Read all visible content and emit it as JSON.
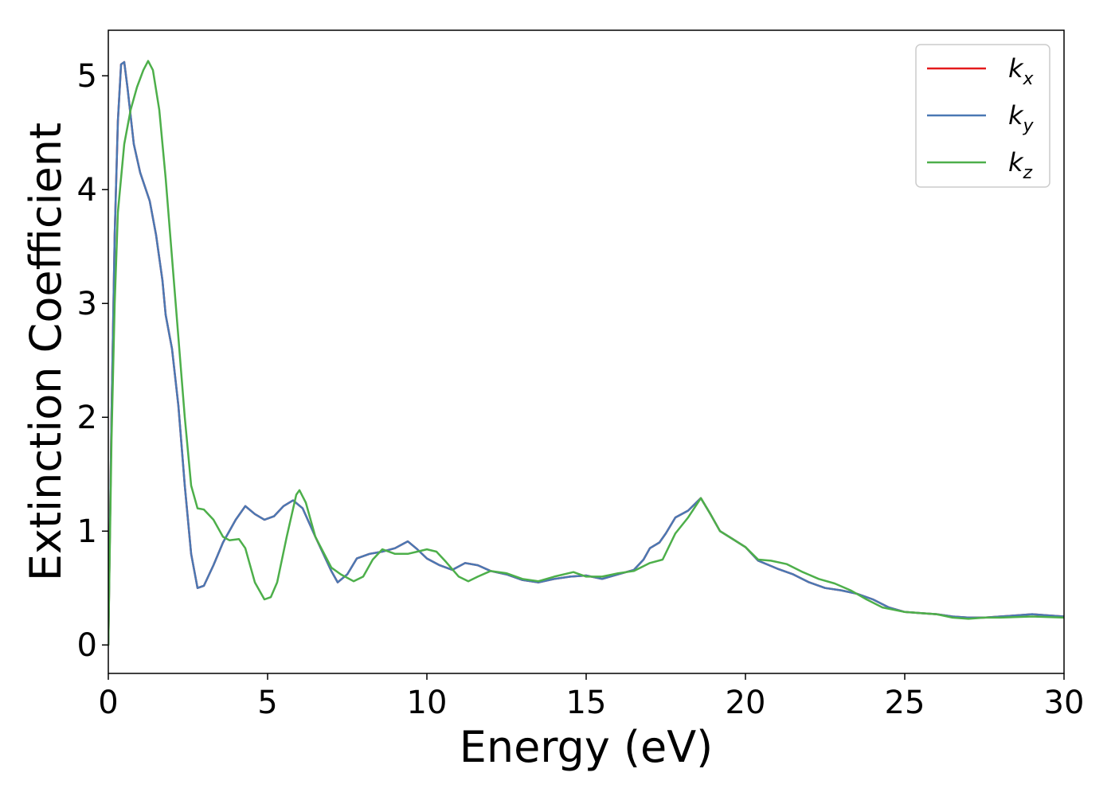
{
  "chart_data": {
    "type": "line",
    "title": "",
    "xlabel": "Energy (eV)",
    "ylabel": "Extinction Coefficient",
    "xlim": [
      0,
      30
    ],
    "ylim": [
      -0.25,
      5.4
    ],
    "xticks": [
      0,
      5,
      10,
      15,
      20,
      25,
      30
    ],
    "yticks": [
      0,
      1,
      2,
      3,
      4,
      5
    ],
    "grid": false,
    "legend_position": "top-right",
    "series": [
      {
        "name": "k",
        "subscript": "x",
        "color": "#e41a1c",
        "points": [
          [
            0,
            0
          ],
          [
            0.1,
            2.0
          ],
          [
            0.2,
            3.6
          ],
          [
            0.3,
            4.6
          ],
          [
            0.4,
            5.1
          ],
          [
            0.5,
            5.12
          ],
          [
            0.6,
            4.9
          ],
          [
            0.8,
            4.4
          ],
          [
            1.0,
            4.15
          ],
          [
            1.3,
            3.9
          ],
          [
            1.5,
            3.6
          ],
          [
            1.7,
            3.2
          ],
          [
            1.8,
            2.9
          ],
          [
            2.0,
            2.6
          ],
          [
            2.2,
            2.1
          ],
          [
            2.4,
            1.4
          ],
          [
            2.6,
            0.8
          ],
          [
            2.8,
            0.5
          ],
          [
            3.0,
            0.52
          ],
          [
            3.3,
            0.7
          ],
          [
            3.6,
            0.9
          ],
          [
            4.0,
            1.1
          ],
          [
            4.3,
            1.22
          ],
          [
            4.6,
            1.15
          ],
          [
            4.9,
            1.1
          ],
          [
            5.2,
            1.13
          ],
          [
            5.5,
            1.22
          ],
          [
            5.8,
            1.27
          ],
          [
            6.1,
            1.2
          ],
          [
            6.5,
            0.95
          ],
          [
            7.0,
            0.65
          ],
          [
            7.2,
            0.55
          ],
          [
            7.5,
            0.62
          ],
          [
            7.8,
            0.76
          ],
          [
            8.2,
            0.8
          ],
          [
            8.6,
            0.82
          ],
          [
            9.0,
            0.85
          ],
          [
            9.4,
            0.91
          ],
          [
            9.7,
            0.84
          ],
          [
            10.0,
            0.76
          ],
          [
            10.4,
            0.7
          ],
          [
            10.8,
            0.66
          ],
          [
            11.2,
            0.72
          ],
          [
            11.6,
            0.7
          ],
          [
            12.0,
            0.65
          ],
          [
            12.5,
            0.62
          ],
          [
            13.0,
            0.57
          ],
          [
            13.5,
            0.55
          ],
          [
            14.0,
            0.58
          ],
          [
            14.5,
            0.6
          ],
          [
            15.0,
            0.61
          ],
          [
            15.5,
            0.58
          ],
          [
            16.0,
            0.62
          ],
          [
            16.5,
            0.66
          ],
          [
            16.8,
            0.75
          ],
          [
            17.0,
            0.85
          ],
          [
            17.3,
            0.9
          ],
          [
            17.5,
            0.98
          ],
          [
            17.8,
            1.12
          ],
          [
            18.2,
            1.18
          ],
          [
            18.6,
            1.29
          ],
          [
            18.9,
            1.15
          ],
          [
            19.2,
            1.0
          ],
          [
            19.6,
            0.93
          ],
          [
            20.0,
            0.86
          ],
          [
            20.4,
            0.74
          ],
          [
            21.0,
            0.67
          ],
          [
            21.5,
            0.62
          ],
          [
            22.0,
            0.55
          ],
          [
            22.5,
            0.5
          ],
          [
            23.0,
            0.48
          ],
          [
            23.5,
            0.45
          ],
          [
            24.0,
            0.4
          ],
          [
            24.5,
            0.33
          ],
          [
            25.0,
            0.29
          ],
          [
            25.5,
            0.28
          ],
          [
            26.0,
            0.27
          ],
          [
            26.5,
            0.25
          ],
          [
            27.0,
            0.24
          ],
          [
            27.5,
            0.24
          ],
          [
            28.0,
            0.25
          ],
          [
            28.5,
            0.26
          ],
          [
            29.0,
            0.27
          ],
          [
            29.5,
            0.26
          ],
          [
            30.0,
            0.25
          ]
        ]
      },
      {
        "name": "k",
        "subscript": "y",
        "color": "#4a78b3",
        "points": [
          [
            0,
            0
          ],
          [
            0.1,
            2.0
          ],
          [
            0.2,
            3.6
          ],
          [
            0.3,
            4.6
          ],
          [
            0.4,
            5.1
          ],
          [
            0.5,
            5.12
          ],
          [
            0.6,
            4.9
          ],
          [
            0.8,
            4.4
          ],
          [
            1.0,
            4.15
          ],
          [
            1.3,
            3.9
          ],
          [
            1.5,
            3.6
          ],
          [
            1.7,
            3.2
          ],
          [
            1.8,
            2.9
          ],
          [
            2.0,
            2.6
          ],
          [
            2.2,
            2.1
          ],
          [
            2.4,
            1.4
          ],
          [
            2.6,
            0.8
          ],
          [
            2.8,
            0.5
          ],
          [
            3.0,
            0.52
          ],
          [
            3.3,
            0.7
          ],
          [
            3.6,
            0.9
          ],
          [
            4.0,
            1.1
          ],
          [
            4.3,
            1.22
          ],
          [
            4.6,
            1.15
          ],
          [
            4.9,
            1.1
          ],
          [
            5.2,
            1.13
          ],
          [
            5.5,
            1.22
          ],
          [
            5.8,
            1.27
          ],
          [
            6.1,
            1.2
          ],
          [
            6.5,
            0.95
          ],
          [
            7.0,
            0.65
          ],
          [
            7.2,
            0.55
          ],
          [
            7.5,
            0.62
          ],
          [
            7.8,
            0.76
          ],
          [
            8.2,
            0.8
          ],
          [
            8.6,
            0.82
          ],
          [
            9.0,
            0.85
          ],
          [
            9.4,
            0.91
          ],
          [
            9.7,
            0.84
          ],
          [
            10.0,
            0.76
          ],
          [
            10.4,
            0.7
          ],
          [
            10.8,
            0.66
          ],
          [
            11.2,
            0.72
          ],
          [
            11.6,
            0.7
          ],
          [
            12.0,
            0.65
          ],
          [
            12.5,
            0.62
          ],
          [
            13.0,
            0.57
          ],
          [
            13.5,
            0.55
          ],
          [
            14.0,
            0.58
          ],
          [
            14.5,
            0.6
          ],
          [
            15.0,
            0.61
          ],
          [
            15.5,
            0.58
          ],
          [
            16.0,
            0.62
          ],
          [
            16.5,
            0.66
          ],
          [
            16.8,
            0.75
          ],
          [
            17.0,
            0.85
          ],
          [
            17.3,
            0.9
          ],
          [
            17.5,
            0.98
          ],
          [
            17.8,
            1.12
          ],
          [
            18.2,
            1.18
          ],
          [
            18.6,
            1.29
          ],
          [
            18.9,
            1.15
          ],
          [
            19.2,
            1.0
          ],
          [
            19.6,
            0.93
          ],
          [
            20.0,
            0.86
          ],
          [
            20.4,
            0.74
          ],
          [
            21.0,
            0.67
          ],
          [
            21.5,
            0.62
          ],
          [
            22.0,
            0.55
          ],
          [
            22.5,
            0.5
          ],
          [
            23.0,
            0.48
          ],
          [
            23.5,
            0.45
          ],
          [
            24.0,
            0.4
          ],
          [
            24.5,
            0.33
          ],
          [
            25.0,
            0.29
          ],
          [
            25.5,
            0.28
          ],
          [
            26.0,
            0.27
          ],
          [
            26.5,
            0.25
          ],
          [
            27.0,
            0.24
          ],
          [
            27.5,
            0.24
          ],
          [
            28.0,
            0.25
          ],
          [
            28.5,
            0.26
          ],
          [
            29.0,
            0.27
          ],
          [
            29.5,
            0.26
          ],
          [
            30.0,
            0.25
          ]
        ]
      },
      {
        "name": "k",
        "subscript": "z",
        "color": "#4daf4a",
        "points": [
          [
            0,
            0
          ],
          [
            0.1,
            1.8
          ],
          [
            0.2,
            3.0
          ],
          [
            0.3,
            3.8
          ],
          [
            0.5,
            4.4
          ],
          [
            0.7,
            4.7
          ],
          [
            0.9,
            4.9
          ],
          [
            1.1,
            5.05
          ],
          [
            1.25,
            5.13
          ],
          [
            1.4,
            5.05
          ],
          [
            1.6,
            4.7
          ],
          [
            1.8,
            4.1
          ],
          [
            2.0,
            3.4
          ],
          [
            2.2,
            2.7
          ],
          [
            2.4,
            2.0
          ],
          [
            2.6,
            1.4
          ],
          [
            2.8,
            1.2
          ],
          [
            3.0,
            1.19
          ],
          [
            3.3,
            1.1
          ],
          [
            3.6,
            0.95
          ],
          [
            3.8,
            0.92
          ],
          [
            4.1,
            0.93
          ],
          [
            4.3,
            0.85
          ],
          [
            4.6,
            0.55
          ],
          [
            4.9,
            0.4
          ],
          [
            5.1,
            0.42
          ],
          [
            5.3,
            0.55
          ],
          [
            5.6,
            0.95
          ],
          [
            5.9,
            1.32
          ],
          [
            6.0,
            1.36
          ],
          [
            6.2,
            1.25
          ],
          [
            6.5,
            0.95
          ],
          [
            7.0,
            0.68
          ],
          [
            7.3,
            0.62
          ],
          [
            7.7,
            0.56
          ],
          [
            8.0,
            0.6
          ],
          [
            8.3,
            0.75
          ],
          [
            8.6,
            0.84
          ],
          [
            9.0,
            0.8
          ],
          [
            9.4,
            0.8
          ],
          [
            9.7,
            0.82
          ],
          [
            10.0,
            0.84
          ],
          [
            10.3,
            0.82
          ],
          [
            10.6,
            0.73
          ],
          [
            11.0,
            0.6
          ],
          [
            11.3,
            0.56
          ],
          [
            11.6,
            0.6
          ],
          [
            12.0,
            0.65
          ],
          [
            12.5,
            0.63
          ],
          [
            13.0,
            0.58
          ],
          [
            13.5,
            0.56
          ],
          [
            14.0,
            0.6
          ],
          [
            14.6,
            0.64
          ],
          [
            15.0,
            0.6
          ],
          [
            15.5,
            0.6
          ],
          [
            16.0,
            0.63
          ],
          [
            16.5,
            0.65
          ],
          [
            17.0,
            0.72
          ],
          [
            17.4,
            0.75
          ],
          [
            17.8,
            0.98
          ],
          [
            18.2,
            1.12
          ],
          [
            18.6,
            1.29
          ],
          [
            18.9,
            1.15
          ],
          [
            19.2,
            1.0
          ],
          [
            19.6,
            0.93
          ],
          [
            20.0,
            0.86
          ],
          [
            20.4,
            0.75
          ],
          [
            20.8,
            0.74
          ],
          [
            21.3,
            0.71
          ],
          [
            21.8,
            0.64
          ],
          [
            22.3,
            0.58
          ],
          [
            22.8,
            0.54
          ],
          [
            23.3,
            0.48
          ],
          [
            23.8,
            0.4
          ],
          [
            24.3,
            0.33
          ],
          [
            25.0,
            0.29
          ],
          [
            25.5,
            0.28
          ],
          [
            26.0,
            0.27
          ],
          [
            26.5,
            0.24
          ],
          [
            27.0,
            0.23
          ],
          [
            27.5,
            0.24
          ],
          [
            28.0,
            0.24
          ],
          [
            29.0,
            0.25
          ],
          [
            30.0,
            0.24
          ]
        ]
      }
    ]
  }
}
